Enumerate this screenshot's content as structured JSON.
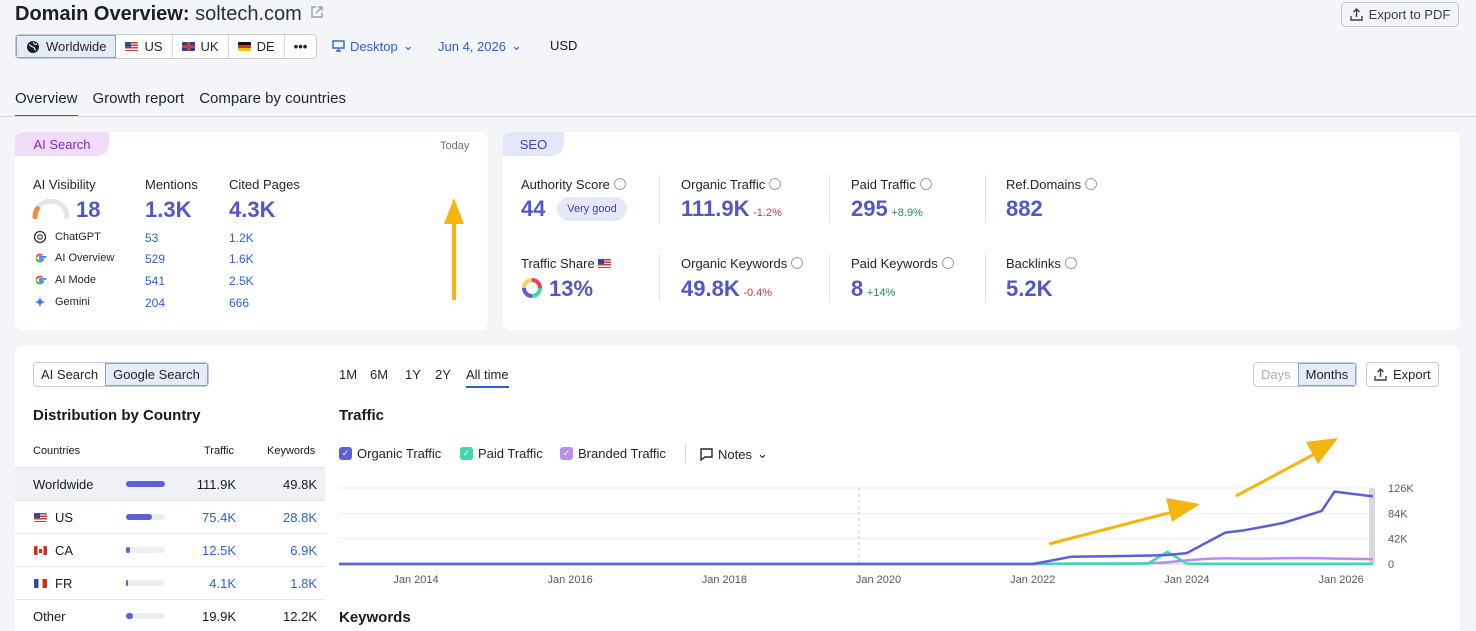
{
  "header": {
    "title_prefix": "Domain Overview:",
    "domain": "soltech.com",
    "export_pdf": "Export to PDF",
    "icons": {
      "external": "external-link-icon",
      "export": "export-icon"
    }
  },
  "databases": [
    {
      "label": "Worldwide",
      "icon": "globe-icon",
      "active": true
    },
    {
      "label": "US",
      "icon": "us-flag-icon"
    },
    {
      "label": "UK",
      "icon": "uk-flag-icon"
    },
    {
      "label": "DE",
      "icon": "de-flag-icon"
    },
    {
      "label": "•••",
      "icon": "more-icon"
    }
  ],
  "filters": {
    "device": "Desktop",
    "date": "Jun 4, 2026",
    "currency": "USD"
  },
  "nav_tabs": [
    "Overview",
    "Growth report",
    "Compare by countries"
  ],
  "ai_search": {
    "pill": "AI Search",
    "today": "Today",
    "col_visibility": "AI Visibility",
    "col_mentions": "Mentions",
    "col_cited": "Cited Pages",
    "visibility": "18",
    "visibility_gauge_pct": 18,
    "mentions": "1.3K",
    "cited": "4.3K",
    "rows": [
      {
        "name": "ChatGPT",
        "icon": "chatgpt-icon",
        "mentions": "53",
        "cited": "1.2K"
      },
      {
        "name": "AI Overview",
        "icon": "google-icon",
        "mentions": "529",
        "cited": "1.6K"
      },
      {
        "name": "AI Mode",
        "icon": "google-icon",
        "mentions": "541",
        "cited": "2.5K"
      },
      {
        "name": "Gemini",
        "icon": "gemini-icon",
        "mentions": "204",
        "cited": "666"
      }
    ]
  },
  "seo": {
    "pill": "SEO",
    "authority_label": "Authority Score",
    "authority": "44",
    "authority_badge": "Very good",
    "organic_label": "Organic Traffic",
    "organic": "111.9K",
    "organic_change": "-1.2%",
    "paid_label": "Paid Traffic",
    "paid": "295",
    "paid_change": "+8.9%",
    "refdomains_label": "Ref.Domains",
    "refdomains": "882",
    "share_label": "Traffic Share",
    "share": "13%",
    "org_kw_label": "Organic Keywords",
    "org_kw": "49.8K",
    "org_kw_change": "-0.4%",
    "paid_kw_label": "Paid Keywords",
    "paid_kw": "8",
    "paid_kw_change": "+14%",
    "backlinks_label": "Backlinks",
    "backlinks": "5.2K"
  },
  "distribution": {
    "toggle": [
      "AI Search",
      "Google Search"
    ],
    "title": "Distribution by Country",
    "col_countries": "Countries",
    "col_traffic": "Traffic",
    "col_keywords": "Keywords",
    "rows": [
      {
        "country": "Worldwide",
        "flag": "",
        "traffic": "111.9K",
        "keywords": "49.8K",
        "share": 1.0
      },
      {
        "country": "US",
        "flag": "us",
        "traffic": "75.4K",
        "keywords": "28.8K",
        "share": 0.67
      },
      {
        "country": "CA",
        "flag": "ca",
        "traffic": "12.5K",
        "keywords": "6.9K",
        "share": 0.11
      },
      {
        "country": "FR",
        "flag": "fr",
        "traffic": "4.1K",
        "keywords": "1.8K",
        "share": 0.04
      },
      {
        "country": "Other",
        "flag": "",
        "traffic": "19.9K",
        "keywords": "12.2K",
        "share": 0.18
      }
    ]
  },
  "traffic_panel": {
    "periods": [
      "1M",
      "6M",
      "1Y",
      "2Y",
      "All time"
    ],
    "active_period": "All time",
    "granularity": [
      "Days",
      "Months"
    ],
    "export": "Export",
    "title": "Traffic",
    "legend": [
      {
        "label": "Organic Traffic",
        "color": "#5c5fd6"
      },
      {
        "label": "Paid Traffic",
        "color": "#3fd6b0"
      },
      {
        "label": "Branded Traffic",
        "color": "#b98cf0"
      }
    ],
    "notes": "Notes",
    "keywords_title": "Keywords"
  },
  "chart_data": {
    "type": "line",
    "x": [
      "2013-01",
      "2014-01",
      "2015-01",
      "2016-01",
      "2017-01",
      "2018-01",
      "2019-01",
      "2020-01",
      "2021-01",
      "2022-01",
      "2022-07",
      "2023-01",
      "2023-07",
      "2023-10",
      "2024-01",
      "2024-04",
      "2024-07",
      "2024-10",
      "2025-01",
      "2025-04",
      "2025-07",
      "2025-10",
      "2025-12",
      "2026-03",
      "2026-06"
    ],
    "series": [
      {
        "name": "Organic Traffic",
        "values": [
          0,
          0,
          0,
          0,
          0,
          0,
          0,
          0,
          0,
          0,
          12000,
          13000,
          14000,
          15000,
          18000,
          35000,
          52000,
          56000,
          62000,
          68000,
          78000,
          88000,
          120000,
          116000,
          112000
        ]
      },
      {
        "name": "Paid Traffic",
        "values": [
          0,
          0,
          0,
          0,
          0,
          0,
          0,
          0,
          0,
          0,
          400,
          500,
          600,
          20000,
          600,
          500,
          500,
          400,
          400,
          300,
          300,
          300,
          300,
          300,
          300
        ]
      },
      {
        "name": "Branded Traffic",
        "values": [
          0,
          0,
          0,
          0,
          0,
          0,
          0,
          0,
          0,
          0,
          800,
          900,
          1200,
          3000,
          6000,
          8500,
          9500,
          9000,
          9000,
          9500,
          10000,
          9500,
          9000,
          8500,
          8000
        ]
      }
    ],
    "x_ticks": [
      "Jan 2014",
      "Jan 2016",
      "Jan 2018",
      "Jan 2020",
      "Jan 2022",
      "Jan 2024",
      "Jan 2026"
    ],
    "y_ticks": [
      "0",
      "42K",
      "84K",
      "126K"
    ],
    "ylim": [
      0,
      126000
    ],
    "grid": true,
    "legend": "top-left"
  }
}
